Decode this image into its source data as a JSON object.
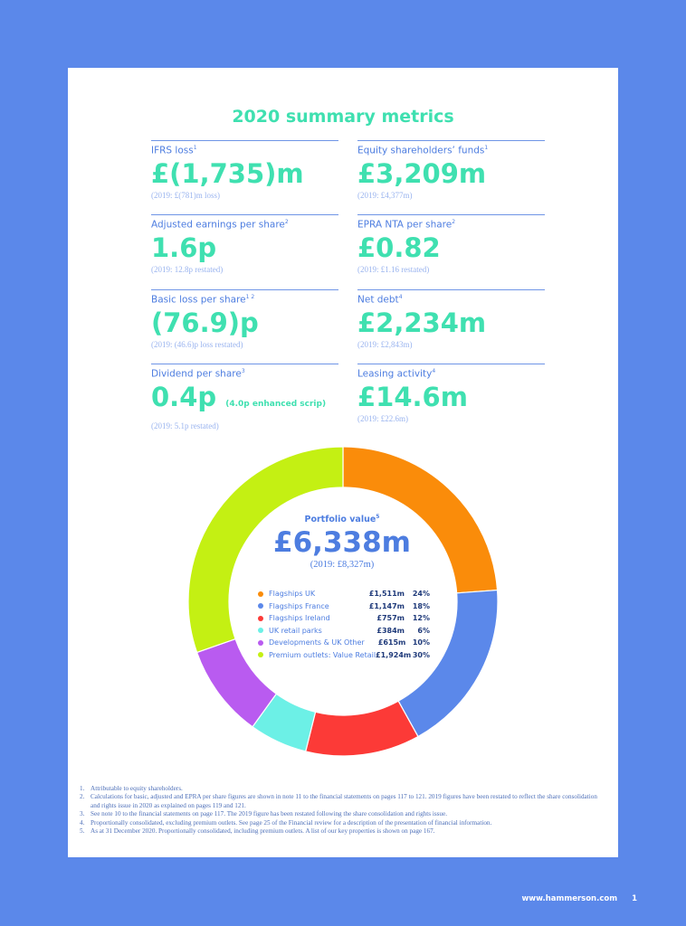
{
  "title": "2020 summary metrics",
  "metrics": [
    {
      "label": "IFRS loss",
      "sup": "1",
      "value": "£(1,735)m",
      "note": "",
      "prior": "(2019: £(781)m loss)"
    },
    {
      "label": "Equity shareholders’ funds",
      "sup": "1",
      "value": "£3,209m",
      "note": "",
      "prior": "(2019: £4,377m)"
    },
    {
      "label": "Adjusted earnings per share",
      "sup": "2",
      "value": "1.6p",
      "note": "",
      "prior": "(2019: 12.8p restated)"
    },
    {
      "label": "EPRA NTA per share",
      "sup": "2",
      "value": "£0.82",
      "note": "",
      "prior": "(2019: £1.16 restated)"
    },
    {
      "label": "Basic loss per share",
      "sup": "1 2",
      "value": "(76.9)p",
      "note": "",
      "prior": "(2019: (46.6)p loss restated)"
    },
    {
      "label": "Net debt",
      "sup": "4",
      "value": "£2,234m",
      "note": "",
      "prior": "(2019: £2,843m)"
    },
    {
      "label": "Dividend per share",
      "sup": "3",
      "value": "0.4p",
      "note": "(4.0p enhanced scrip)",
      "prior": "(2019: 5.1p restated)"
    },
    {
      "label": "Leasing activity",
      "sup": "4",
      "value": "£14.6m",
      "note": "",
      "prior": "(2019: £22.6m)"
    }
  ],
  "portfolio": {
    "label": "Portfolio value",
    "sup": "5",
    "value": "£6,338m",
    "prior": "(2019: £8,327m)"
  },
  "chart_data": {
    "type": "pie",
    "title": "Portfolio value",
    "categories": [
      "Flagships UK",
      "Flagships France",
      "Flagships Ireland",
      "UK retail parks",
      "Developments & UK Other",
      "Premium outlets: Value Retail"
    ],
    "amounts": [
      "£1,511m",
      "£1,147m",
      "£757m",
      "£384m",
      "£615m",
      "£1,924m"
    ],
    "values": [
      1511,
      1147,
      757,
      384,
      615,
      1924
    ],
    "percent_labels": [
      "24%",
      "18%",
      "12%",
      "6%",
      "10%",
      "30%"
    ],
    "colors": [
      "#fa8c0a",
      "#5b88ea",
      "#fc3a37",
      "#6cf0e6",
      "#b95bf0",
      "#c4f013"
    ]
  },
  "footnotes": [
    {
      "num": "1.",
      "text": "Attributable to equity shareholders."
    },
    {
      "num": "2.",
      "text": "Calculations for basic, adjusted and EPRA per share figures are shown in note 11 to the financial statements on pages 117 to 121. 2019 figures have been restated to reflect the share consolidation and rights issue in 2020 as explained on pages 119 and 121."
    },
    {
      "num": "3.",
      "text": "See note 10 to the financial statements on page 117. The 2019 figure has been restated following the share consolidation and rights issue."
    },
    {
      "num": "4.",
      "text": "Proportionally consolidated, excluding premium outlets. See page 25 of the Financial review for a description of the presentation of financial information."
    },
    {
      "num": "5.",
      "text": "As at 31 December 2020. Proportionally consolidated, including premium outlets. A list of our key properties is shown on page 167."
    }
  ],
  "footer": {
    "url": "www.hammerson.com",
    "page": "1"
  }
}
